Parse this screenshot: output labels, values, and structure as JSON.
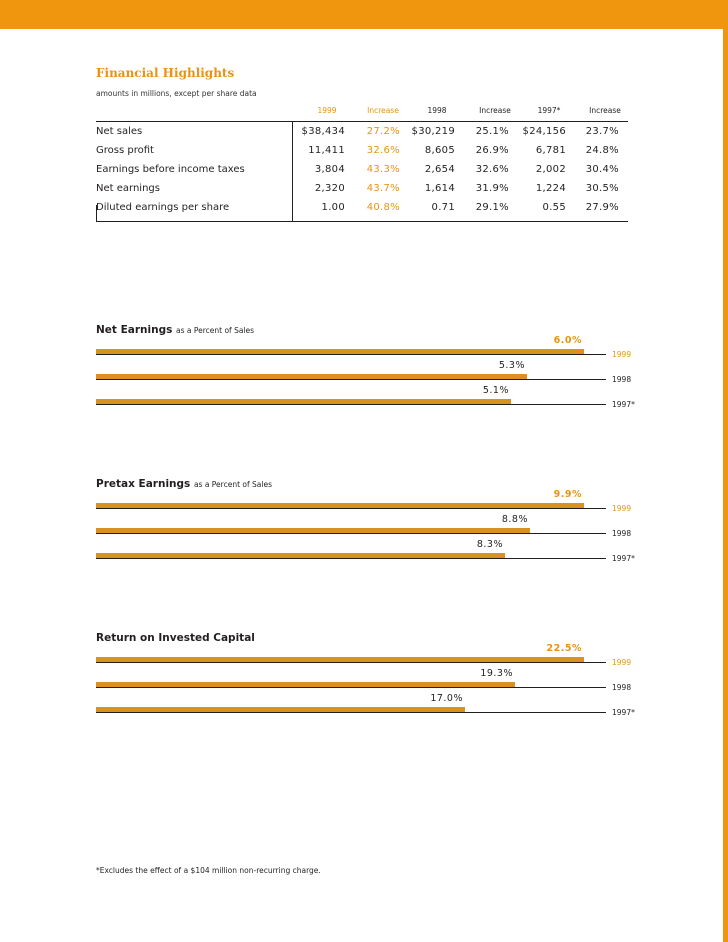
{
  "colors": {
    "accent": "#f0960e",
    "bar": "#d9921e",
    "text": "#231f20"
  },
  "title": "Financial Highlights",
  "subtitle": "amounts in millions, except per share data",
  "table": {
    "headers": [
      "1999",
      "Increase",
      "1998",
      "Increase",
      "1997*",
      "Increase"
    ],
    "rows": [
      {
        "label": "Net sales",
        "values": [
          "$38,434",
          "27.2%",
          "$30,219",
          "25.1%",
          "$24,156",
          "23.7%"
        ]
      },
      {
        "label": "Gross profit",
        "values": [
          "11,411",
          "32.6%",
          "8,605",
          "26.9%",
          "6,781",
          "24.8%"
        ]
      },
      {
        "label": "Earnings before income taxes",
        "values": [
          "3,804",
          "43.3%",
          "2,654",
          "32.6%",
          "2,002",
          "30.4%"
        ]
      },
      {
        "label": "Net earnings",
        "values": [
          "2,320",
          "43.7%",
          "1,614",
          "31.9%",
          "1,224",
          "30.5%"
        ]
      },
      {
        "label": "Diluted earnings per share",
        "values": [
          "1.00",
          "40.8%",
          "0.71",
          "29.1%",
          "0.55",
          "27.9%"
        ]
      }
    ]
  },
  "chart_data": [
    {
      "type": "bar",
      "title": "Net Earnings",
      "subtitle": "as a Percent of Sales",
      "categories": [
        "1999",
        "1998",
        "1997*"
      ],
      "values": [
        6.0,
        5.3,
        5.1
      ],
      "labels": [
        "6.0%",
        "5.3%",
        "5.1%"
      ]
    },
    {
      "type": "bar",
      "title": "Pretax Earnings",
      "subtitle": "as a Percent of Sales",
      "categories": [
        "1999",
        "1998",
        "1997*"
      ],
      "values": [
        9.9,
        8.8,
        8.3
      ],
      "labels": [
        "9.9%",
        "8.8%",
        "8.3%"
      ]
    },
    {
      "type": "bar",
      "title": "Return on Invested Capital",
      "subtitle": "",
      "categories": [
        "1999",
        "1998",
        "1997*"
      ],
      "values": [
        22.5,
        19.3,
        17.0
      ],
      "labels": [
        "22.5%",
        "19.3%",
        "17.0%"
      ]
    }
  ],
  "footnote": "*Excludes the effect of a $104 million non-recurring charge."
}
